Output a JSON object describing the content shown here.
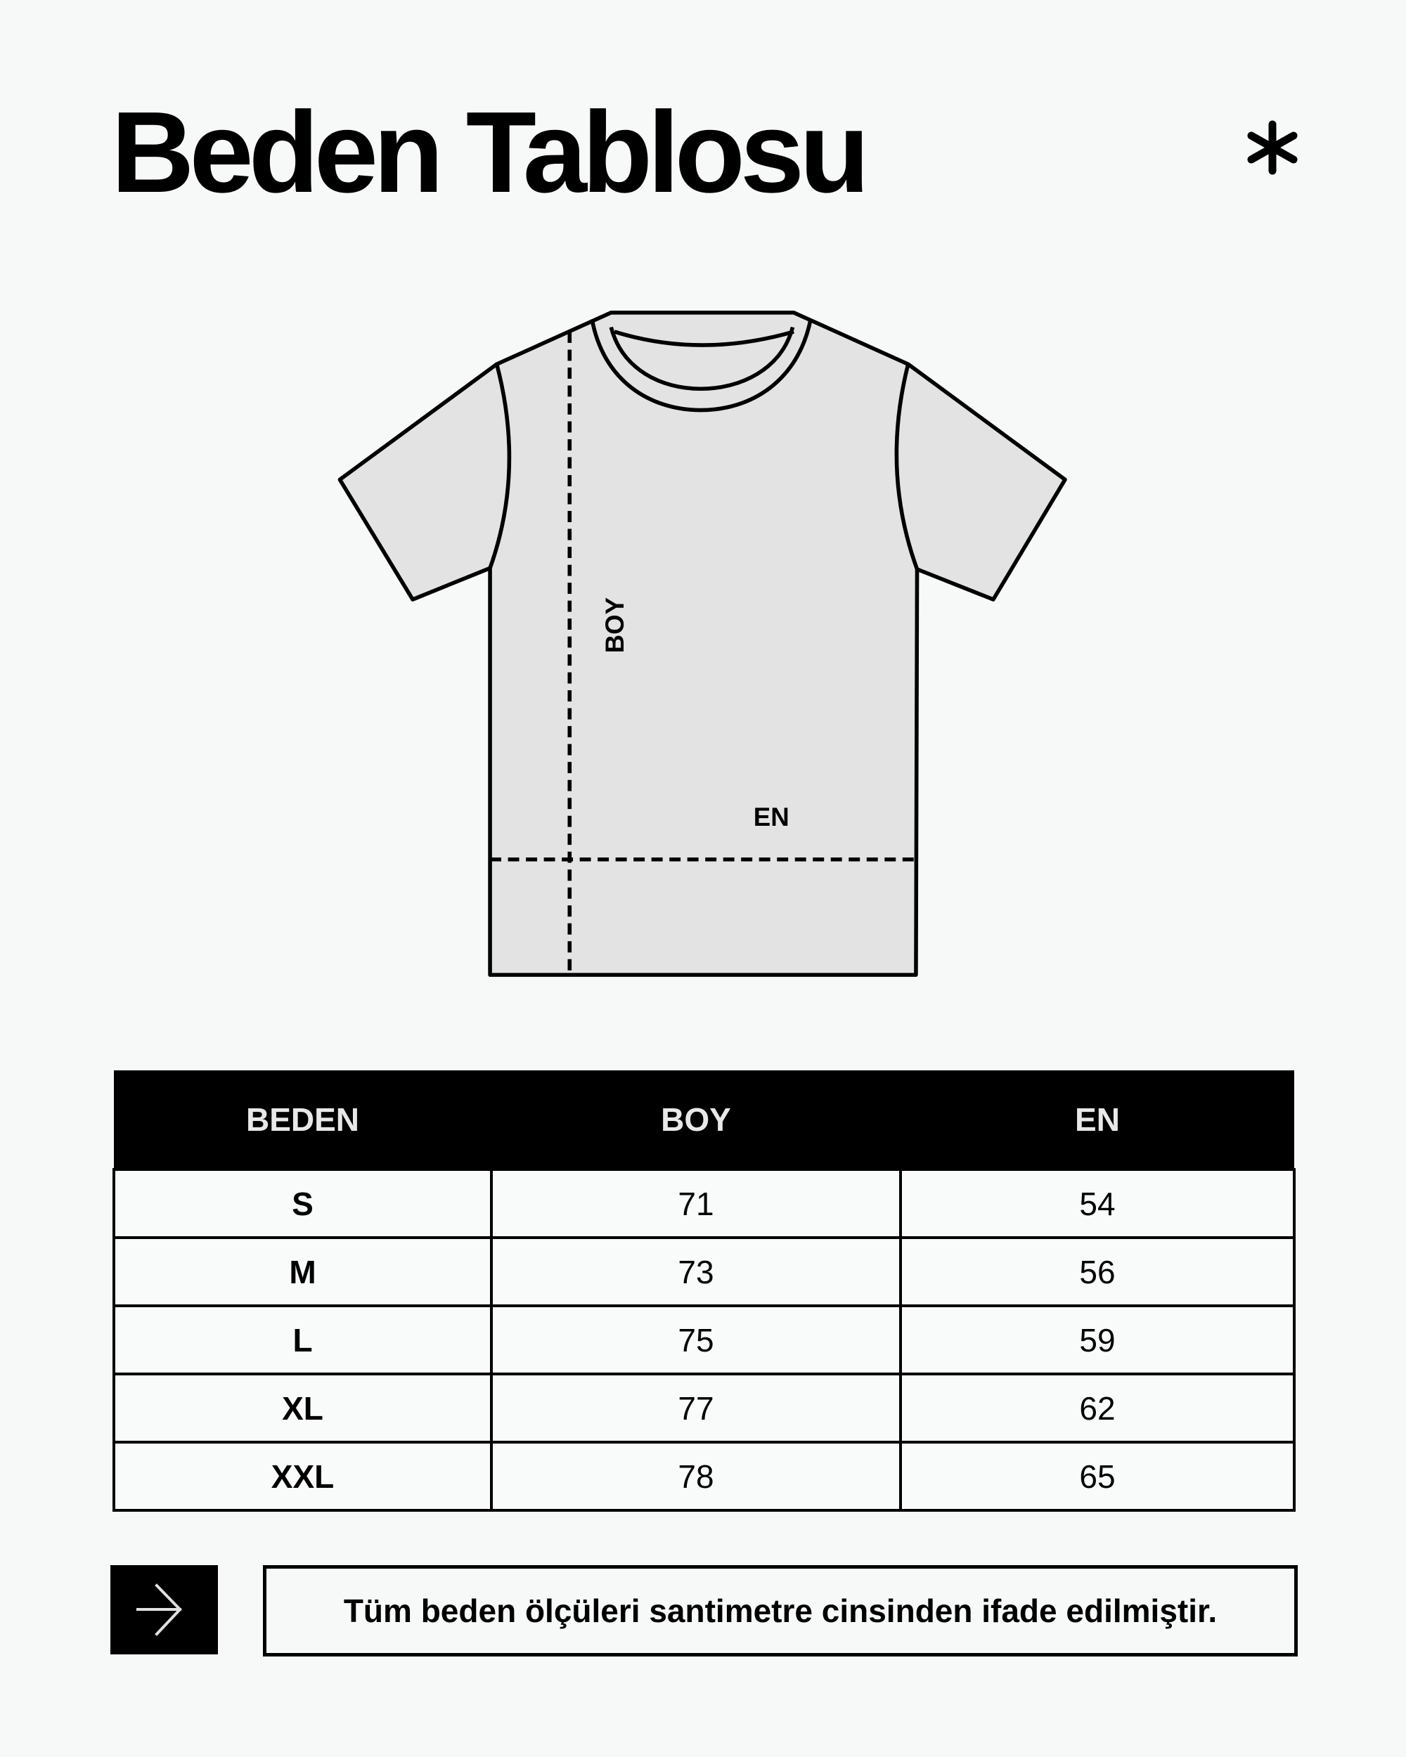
{
  "title": "Beden Tablosu",
  "diagram": {
    "boy_label": "BOY",
    "en_label": "EN",
    "shirt_fill": "#e3e3e3"
  },
  "table": {
    "headers": [
      "BEDEN",
      "BOY",
      "EN"
    ],
    "rows": [
      [
        "S",
        "71",
        "54"
      ],
      [
        "M",
        "73",
        "56"
      ],
      [
        "L",
        "75",
        "59"
      ],
      [
        "XL",
        "77",
        "62"
      ],
      [
        "XXL",
        "78",
        "65"
      ]
    ]
  },
  "note": "Tüm beden ölçüleri santimetre cinsinden ifade edilmiştir.",
  "icons": {
    "top_right": "asterisk-icon",
    "note": "arrow-right-icon"
  }
}
